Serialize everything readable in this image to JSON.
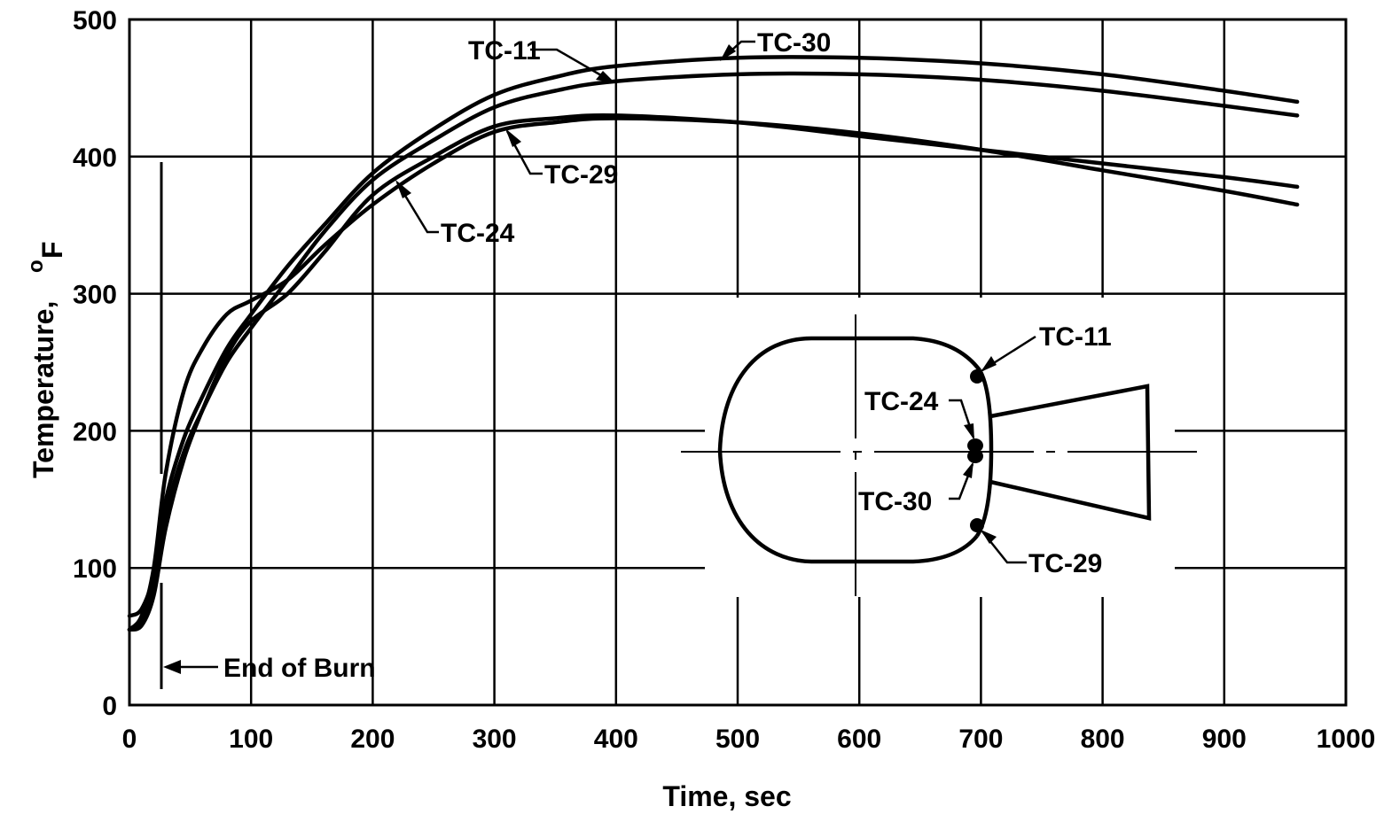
{
  "chart_data": {
    "type": "line",
    "x_title": "Time, sec",
    "y_title_main": "Temperature,",
    "y_title_unit": "F",
    "y_title_unit_super": "o",
    "xlim": [
      0,
      1000
    ],
    "ylim": [
      0,
      500
    ],
    "x_ticks": [
      "0",
      "100",
      "200",
      "300",
      "400",
      "500",
      "600",
      "700",
      "800",
      "900",
      "1000"
    ],
    "y_ticks": [
      "0",
      "100",
      "200",
      "300",
      "400",
      "500"
    ],
    "grid": true,
    "series": [
      {
        "name": "TC-11",
        "x": [
          0,
          10,
          20,
          30,
          45,
          60,
          80,
          100,
          130,
          160,
          200,
          250,
          300,
          350,
          400,
          500,
          600,
          700,
          800,
          900,
          960
        ],
        "y": [
          65,
          70,
          95,
          150,
          195,
          225,
          260,
          285,
          320,
          350,
          388,
          420,
          445,
          458,
          466,
          472,
          472,
          468,
          460,
          448,
          440
        ]
      },
      {
        "name": "TC-30",
        "x": [
          0,
          10,
          20,
          30,
          45,
          60,
          80,
          100,
          130,
          160,
          200,
          250,
          300,
          350,
          400,
          500,
          600,
          700,
          800,
          900,
          960
        ],
        "y": [
          55,
          62,
          90,
          140,
          185,
          215,
          250,
          275,
          310,
          345,
          383,
          412,
          436,
          448,
          455,
          460,
          460,
          456,
          448,
          437,
          430
        ]
      },
      {
        "name": "TC-24",
        "x": [
          0,
          10,
          20,
          30,
          45,
          60,
          80,
          100,
          130,
          160,
          200,
          250,
          300,
          350,
          400,
          500,
          600,
          700,
          800,
          900,
          960
        ],
        "y": [
          55,
          58,
          80,
          130,
          180,
          215,
          255,
          280,
          300,
          330,
          372,
          400,
          422,
          428,
          430,
          425,
          415,
          405,
          395,
          385,
          378
        ]
      },
      {
        "name": "TC-29",
        "x": [
          0,
          10,
          20,
          30,
          45,
          60,
          80,
          100,
          130,
          160,
          200,
          250,
          300,
          350,
          400,
          500,
          600,
          700,
          800,
          900,
          960
        ],
        "y": [
          55,
          65,
          100,
          170,
          230,
          260,
          285,
          295,
          310,
          335,
          365,
          395,
          418,
          425,
          428,
          425,
          417,
          405,
          390,
          375,
          365
        ]
      }
    ],
    "annotations": {
      "end_of_burn": {
        "label": "End of Burn",
        "time": 25
      },
      "curve_labels": [
        "TC-11",
        "TC-30",
        "TC-29",
        "TC-24"
      ]
    },
    "inset_labels": [
      "TC-11",
      "TC-24",
      "TC-30",
      "TC-29"
    ]
  }
}
